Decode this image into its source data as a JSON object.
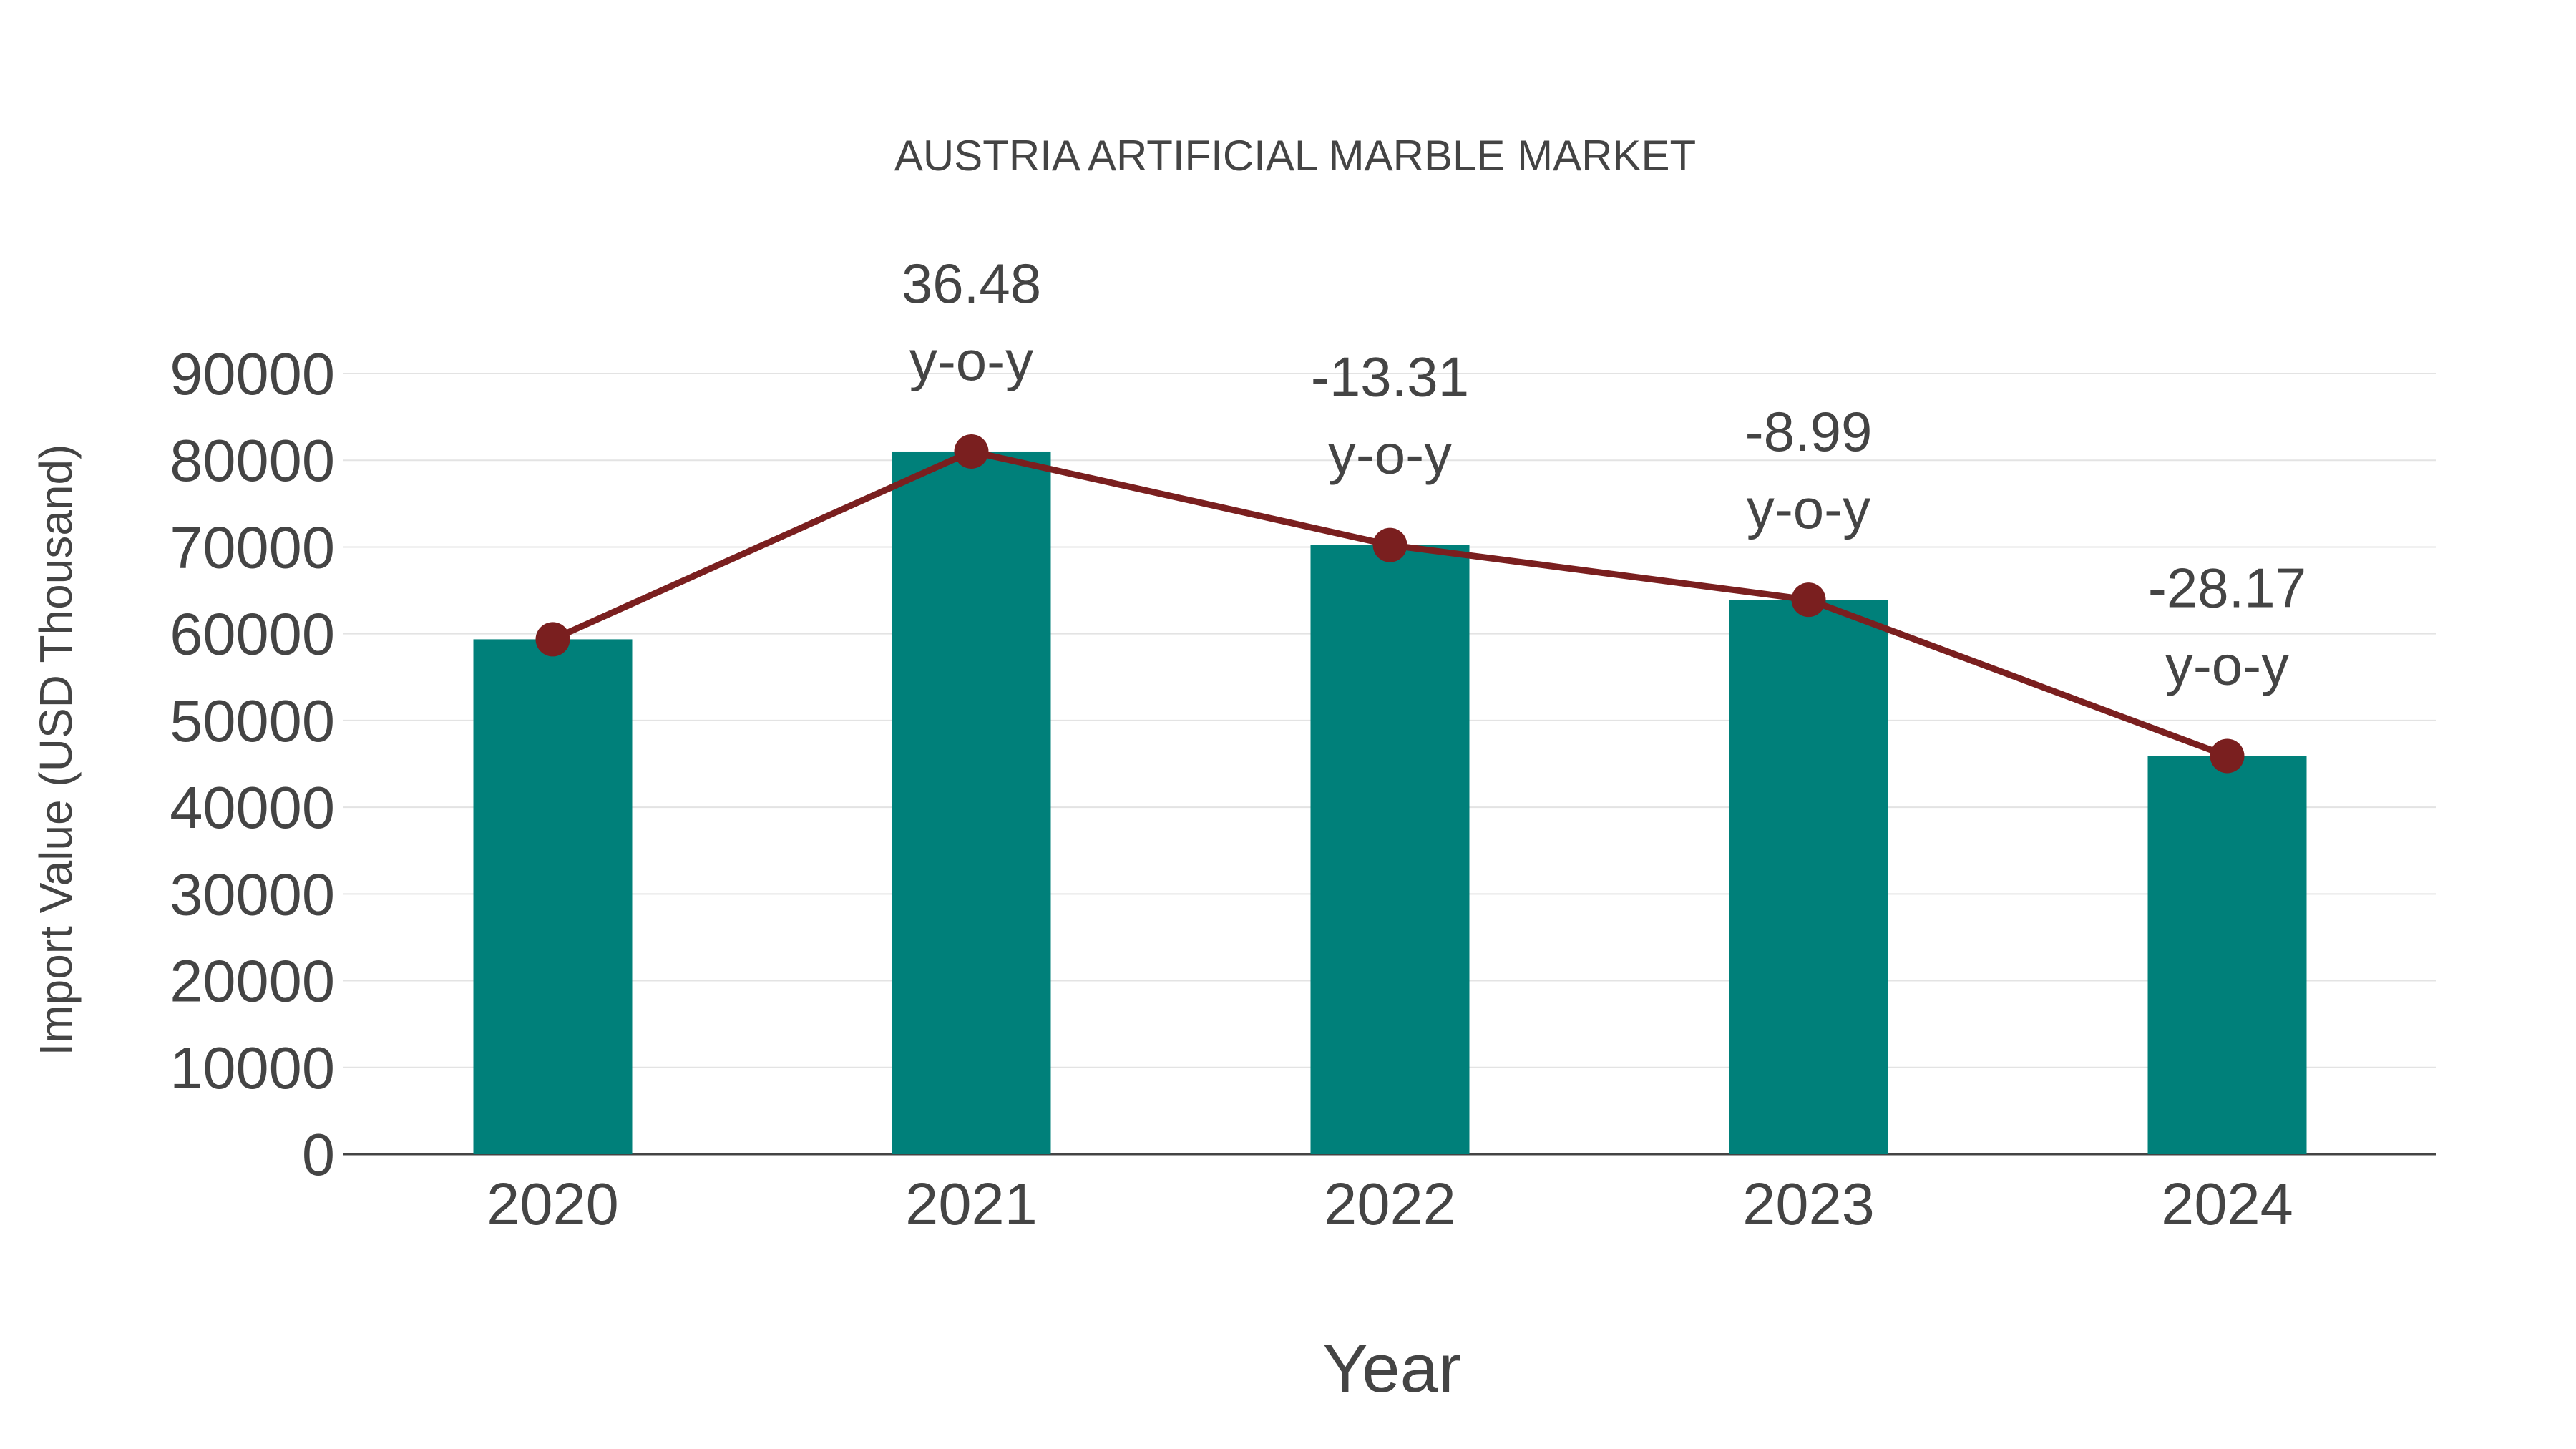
{
  "chart_data": {
    "type": "bar",
    "title": "AUSTRIA ARTIFICIAL MARBLE MARKET",
    "xlabel": "Year",
    "ylabel": "Import Value (USD Thousand)",
    "categories": [
      "2020",
      "2021",
      "2022",
      "2023",
      "2024"
    ],
    "series": [
      {
        "name": "Import Value",
        "type": "bar",
        "color": "#00807a",
        "values": [
          59360,
          81010,
          70230,
          63920,
          45910
        ]
      },
      {
        "name": "Trend",
        "type": "line",
        "color": "#7a1f1f",
        "values": [
          59360,
          81010,
          70230,
          63920,
          45910
        ]
      }
    ],
    "annotations": [
      {
        "category": "2021",
        "value": "36.48",
        "suffix": "y-o-y"
      },
      {
        "category": "2022",
        "value": "-13.31",
        "suffix": "y-o-y"
      },
      {
        "category": "2023",
        "value": "-8.99",
        "suffix": "y-o-y"
      },
      {
        "category": "2024",
        "value": "-28.17",
        "suffix": "y-o-y"
      }
    ],
    "yticks": [
      "0",
      "10000",
      "20000",
      "30000",
      "40000",
      "50000",
      "60000",
      "70000",
      "80000",
      "90000"
    ],
    "ylim": [
      0,
      90000
    ],
    "grid": true
  }
}
